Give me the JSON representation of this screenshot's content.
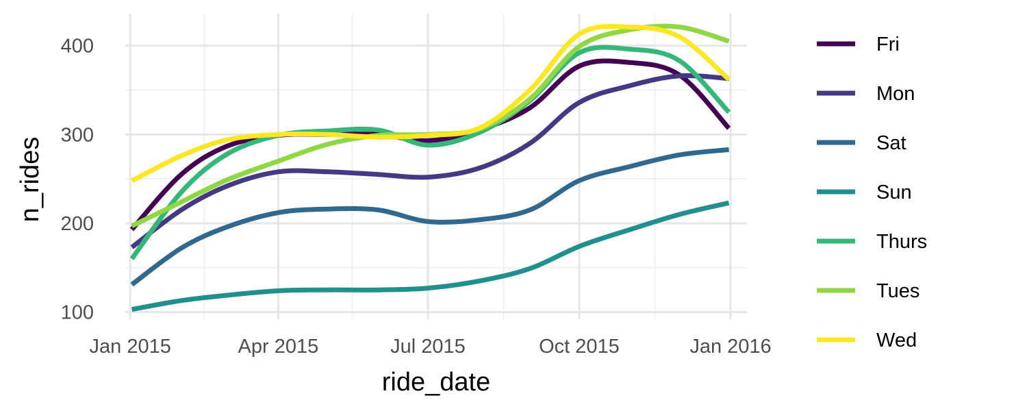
{
  "chart_data": {
    "type": "line",
    "title": "",
    "xlabel": "ride_date",
    "ylabel": "n_rides",
    "x_ticks": [
      "Jan 2015",
      "Apr 2015",
      "Jul 2015",
      "Oct 2015",
      "Jan 2016"
    ],
    "y_ticks": [
      100,
      200,
      300,
      400
    ],
    "xlim": [
      "2014-12-29",
      "2016-01-11"
    ],
    "ylim": [
      92,
      436
    ],
    "grid": true,
    "legend_position": "right",
    "x": [
      "2015-01-02",
      "2015-02-01",
      "2015-03-01",
      "2015-04-01",
      "2015-05-01",
      "2015-06-01",
      "2015-07-01",
      "2015-08-01",
      "2015-09-01",
      "2015-10-01",
      "2015-11-01",
      "2015-12-01",
      "2015-12-31"
    ],
    "series": [
      {
        "name": "Fri",
        "color": "#440154",
        "values": [
          193,
          255,
          287,
          299,
          300,
          300,
          293,
          305,
          330,
          377,
          381,
          367,
          307
        ]
      },
      {
        "name": "Mon",
        "color": "#443a83",
        "values": [
          173,
          215,
          242,
          258,
          258,
          255,
          252,
          262,
          290,
          336,
          355,
          366,
          363
        ]
      },
      {
        "name": "Sat",
        "color": "#31688e",
        "values": [
          131,
          172,
          196,
          212,
          216,
          215,
          202,
          204,
          215,
          248,
          264,
          277,
          283
        ]
      },
      {
        "name": "Sun",
        "color": "#21908d",
        "values": [
          103,
          113,
          119,
          124,
          125,
          125,
          127,
          135,
          149,
          174,
          193,
          210,
          223
        ]
      },
      {
        "name": "Thurs",
        "color": "#35b779",
        "values": [
          160,
          235,
          278,
          299,
          304,
          305,
          288,
          302,
          338,
          392,
          396,
          383,
          325
        ]
      },
      {
        "name": "Tues",
        "color": "#8fd744",
        "values": [
          197,
          224,
          249,
          270,
          289,
          299,
          300,
          306,
          340,
          399,
          418,
          421,
          405
        ]
      },
      {
        "name": "Wed",
        "color": "#fde725",
        "values": [
          248,
          276,
          294,
          300,
          300,
          297,
          299,
          307,
          350,
          413,
          421,
          410,
          362
        ]
      }
    ]
  }
}
